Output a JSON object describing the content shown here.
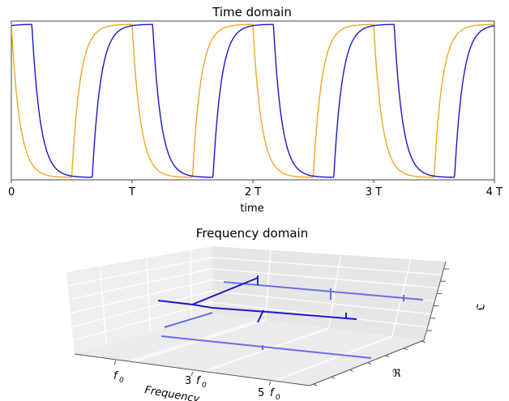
{
  "colors": {
    "series_a": "#f2a623",
    "series_b": "#1919c8",
    "axis_3d_line": "#5b5bd8",
    "frame": "#444444"
  },
  "chart_data": [
    {
      "type": "line",
      "title": "Time domain",
      "xlabel": "time",
      "ylabel": "",
      "xlim": [
        0,
        4
      ],
      "x_ticks": [
        0,
        1,
        2,
        3,
        4
      ],
      "x_tick_labels": [
        "0",
        "T",
        "2 T",
        "3 T",
        "4 T"
      ],
      "y_ticks_shown": false,
      "grid": false,
      "series": [
        {
          "description_key": "series_a",
          "waveform": "rc-charge/discharge square response",
          "period": 1,
          "fall_start": 0.0,
          "rise_start": 0.5,
          "time_constant": 0.07,
          "ylim": [
            0,
            1
          ]
        },
        {
          "description_key": "series_b",
          "waveform": "delayed rc-charge/discharge square response",
          "period": 1,
          "fall_start": 0.17,
          "rise_start": 0.67,
          "time_constant": 0.07,
          "ylim": [
            0,
            1
          ]
        }
      ]
    },
    {
      "type": "line",
      "title": "Frequency domain",
      "projection": "3d",
      "xlabel": "Frequency",
      "ylabel": "ℜ",
      "zlabel": "ℑ",
      "x_ticks": [
        1,
        3,
        5
      ],
      "x_tick_labels": [
        "f0",
        "3 f0",
        "5 f0"
      ],
      "grid": true
    }
  ],
  "labels": {
    "f0_base": "f",
    "f0_sub": "0",
    "three": "3 ",
    "five": "5 "
  }
}
